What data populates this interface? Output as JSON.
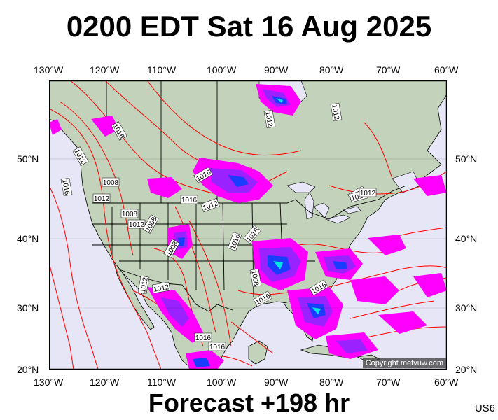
{
  "header": {
    "title": "0200 EDT Sat 16 Aug 2025"
  },
  "footer": {
    "forecast": "Forecast +198 hr",
    "code": "US6"
  },
  "copyright": "Copyright metvuw.com",
  "axes": {
    "lon_labels": [
      "130°W",
      "120°W",
      "110°W",
      "100°W",
      "90°W",
      "80°W",
      "70°W",
      "60°W"
    ],
    "lat_labels": [
      "50°N",
      "40°N",
      "30°N",
      "20°N"
    ]
  },
  "isobar_labels": [
    "1016",
    "1012",
    "1016",
    "1008",
    "1012",
    "1008",
    "1012",
    "1016",
    "1008",
    "1016",
    "1016",
    "1016",
    "1008",
    "1012",
    "1012",
    "1012",
    "1008",
    "1012",
    "1012",
    "1016",
    "1016",
    "1016",
    "1012",
    "1016",
    "1016",
    "1016"
  ],
  "colors": {
    "ocean": "#e6e6f6",
    "land": "#c3d3bb",
    "isobar": "#ff0000",
    "border": "#000000",
    "rain_light": "#ff00ff",
    "rain_mid": "#9922ff",
    "rain_heavy": "#1a3cff",
    "rain_extreme": "#00e5e5"
  }
}
